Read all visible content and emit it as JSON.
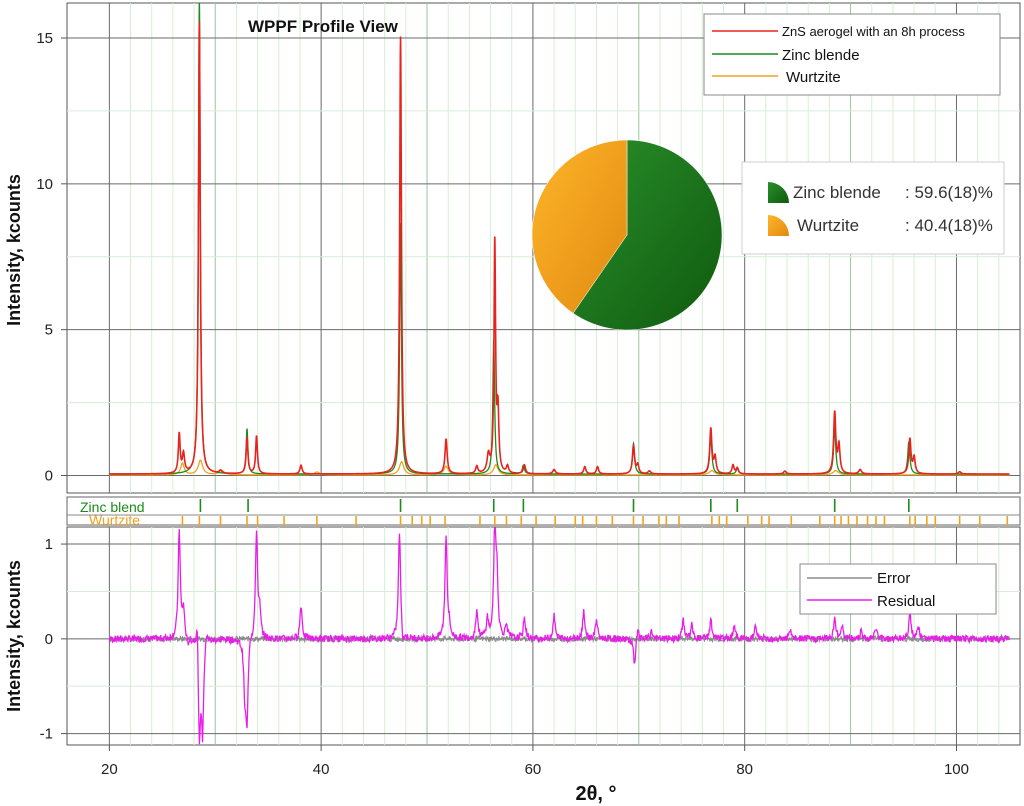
{
  "title": "WPPF Profile View",
  "colors": {
    "observed": "#e8231d",
    "zinc_blende": "#1c8a1c",
    "wurtzite": "#f0a21c",
    "error": "#8a8a8a",
    "residual": "#e81ee8",
    "pie_zinc": "#1a7a1a",
    "pie_wurtzite": "#f2a618"
  },
  "chart_data": [
    {
      "id": "main-profile",
      "type": "line",
      "title": "WPPF Profile View",
      "xlabel": "",
      "ylabel": "Intensity, kcounts",
      "xlim": [
        16,
        106
      ],
      "ylim": [
        -0.6,
        16.2
      ],
      "yticks": [
        0,
        5,
        10,
        15
      ],
      "grid": true,
      "legend_position": "top-right",
      "x_range": [
        20,
        105
      ],
      "baseline": 0.05,
      "series": [
        {
          "name": "ZnS aerogel with an 8h process",
          "color": "#e8231d",
          "peaks": [
            {
              "x": 26.6,
              "h": 1.35,
              "w": 0.1
            },
            {
              "x": 27.0,
              "h": 0.65,
              "w": 0.12
            },
            {
              "x": 28.5,
              "h": 15.5,
              "w": 0.1
            },
            {
              "x": 30.5,
              "h": 0.1,
              "w": 0.15
            },
            {
              "x": 33.0,
              "h": 1.25,
              "w": 0.1
            },
            {
              "x": 33.9,
              "h": 1.3,
              "w": 0.1
            },
            {
              "x": 38.1,
              "h": 0.3,
              "w": 0.12
            },
            {
              "x": 47.5,
              "h": 15.0,
              "w": 0.1
            },
            {
              "x": 51.8,
              "h": 1.2,
              "w": 0.12
            },
            {
              "x": 54.7,
              "h": 0.25,
              "w": 0.12
            },
            {
              "x": 55.8,
              "h": 0.6,
              "w": 0.15
            },
            {
              "x": 56.4,
              "h": 7.9,
              "w": 0.09
            },
            {
              "x": 56.7,
              "h": 2.0,
              "w": 0.1
            },
            {
              "x": 57.6,
              "h": 0.25,
              "w": 0.12
            },
            {
              "x": 59.2,
              "h": 0.3,
              "w": 0.12
            },
            {
              "x": 62.0,
              "h": 0.15,
              "w": 0.15
            },
            {
              "x": 64.9,
              "h": 0.25,
              "w": 0.12
            },
            {
              "x": 66.1,
              "h": 0.25,
              "w": 0.12
            },
            {
              "x": 69.5,
              "h": 0.95,
              "w": 0.12
            },
            {
              "x": 69.9,
              "h": 0.3,
              "w": 0.12
            },
            {
              "x": 71.0,
              "h": 0.1,
              "w": 0.15
            },
            {
              "x": 76.8,
              "h": 1.55,
              "w": 0.12
            },
            {
              "x": 77.2,
              "h": 0.55,
              "w": 0.12
            },
            {
              "x": 78.9,
              "h": 0.3,
              "w": 0.12
            },
            {
              "x": 79.3,
              "h": 0.2,
              "w": 0.12
            },
            {
              "x": 83.8,
              "h": 0.1,
              "w": 0.15
            },
            {
              "x": 88.5,
              "h": 2.1,
              "w": 0.12
            },
            {
              "x": 88.9,
              "h": 0.95,
              "w": 0.12
            },
            {
              "x": 90.9,
              "h": 0.15,
              "w": 0.15
            },
            {
              "x": 95.6,
              "h": 1.2,
              "w": 0.12
            },
            {
              "x": 96.0,
              "h": 0.55,
              "w": 0.12
            },
            {
              "x": 100.3,
              "h": 0.08,
              "w": 0.15
            }
          ]
        },
        {
          "name": "Zinc blende",
          "color": "#1c8a1c",
          "peaks": [
            {
              "x": 28.5,
              "h": 16.4,
              "w": 0.1
            },
            {
              "x": 33.0,
              "h": 1.55,
              "w": 0.1
            },
            {
              "x": 47.5,
              "h": 8.6,
              "w": 0.1
            },
            {
              "x": 56.3,
              "h": 4.6,
              "w": 0.1
            },
            {
              "x": 59.1,
              "h": 0.3,
              "w": 0.12
            },
            {
              "x": 69.5,
              "h": 1.05,
              "w": 0.12
            },
            {
              "x": 76.8,
              "h": 1.3,
              "w": 0.12
            },
            {
              "x": 79.3,
              "h": 0.2,
              "w": 0.12
            },
            {
              "x": 88.5,
              "h": 1.6,
              "w": 0.12
            },
            {
              "x": 95.5,
              "h": 1.1,
              "w": 0.12
            }
          ]
        },
        {
          "name": "Wurtzite",
          "color": "#f0a21c",
          "peaks": [
            {
              "x": 26.9,
              "h": 0.4,
              "w": 0.2
            },
            {
              "x": 28.6,
              "h": 0.5,
              "w": 0.25
            },
            {
              "x": 30.6,
              "h": 0.15,
              "w": 0.3
            },
            {
              "x": 39.6,
              "h": 0.1,
              "w": 0.3
            },
            {
              "x": 47.6,
              "h": 0.45,
              "w": 0.25
            },
            {
              "x": 51.8,
              "h": 0.3,
              "w": 0.25
            },
            {
              "x": 56.5,
              "h": 0.35,
              "w": 0.25
            },
            {
              "x": 76.9,
              "h": 0.15,
              "w": 0.3
            },
            {
              "x": 88.6,
              "h": 0.15,
              "w": 0.3
            }
          ]
        }
      ]
    },
    {
      "id": "reflection-ticks",
      "type": "scatter",
      "series": [
        {
          "name": "Zinc blend",
          "color": "#1c8a1c",
          "positions": [
            28.6,
            33.1,
            47.5,
            56.3,
            59.1,
            69.5,
            76.8,
            79.3,
            88.5,
            95.5
          ]
        },
        {
          "name": "Wurtzite",
          "color": "#f0a21c",
          "positions": [
            26.9,
            28.5,
            30.5,
            33.0,
            34.0,
            36.5,
            39.6,
            43.3,
            47.5,
            48.6,
            49.5,
            50.3,
            51.7,
            55.0,
            56.4,
            57.5,
            58.9,
            60.3,
            62.1,
            64.0,
            64.7,
            66.0,
            67.5,
            69.5,
            70.4,
            71.9,
            72.6,
            73.8,
            76.9,
            77.6,
            78.3,
            80.3,
            81.6,
            82.3,
            84.4,
            87.1,
            88.5,
            89.1,
            89.8,
            90.6,
            91.6,
            92.4,
            93.2,
            95.6,
            96.1,
            97.2,
            98.0,
            100.3,
            102.2,
            104.8
          ]
        }
      ]
    },
    {
      "id": "residual-profile",
      "type": "line",
      "xlabel": "2θ, °",
      "ylabel": "Intensity, kcounts",
      "xlim": [
        16,
        106
      ],
      "ylim": [
        -1.12,
        1.18
      ],
      "yticks": [
        -1,
        0,
        1
      ],
      "xticks": [
        20,
        40,
        60,
        80,
        100
      ],
      "grid": true,
      "legend_position": "top-right",
      "series": [
        {
          "name": "Error",
          "color": "#8a8a8a",
          "amplitude": 0.03
        },
        {
          "name": "Residual",
          "color": "#e81ee8",
          "spikes": [
            {
              "x": 26.6,
              "v": 1.15
            },
            {
              "x": 27.0,
              "v": 0.3
            },
            {
              "x": 27.4,
              "v": -0.08
            },
            {
              "x": 28.3,
              "v": 0.4
            },
            {
              "x": 28.5,
              "v": -1.12
            },
            {
              "x": 28.8,
              "v": -0.95
            },
            {
              "x": 29.2,
              "v": 0.15
            },
            {
              "x": 32.8,
              "v": -0.55
            },
            {
              "x": 33.0,
              "v": -0.85
            },
            {
              "x": 33.3,
              "v": 0.1
            },
            {
              "x": 33.9,
              "v": 1.15
            },
            {
              "x": 34.2,
              "v": 0.25
            },
            {
              "x": 38.1,
              "v": 0.36
            },
            {
              "x": 47.4,
              "v": 1.15
            },
            {
              "x": 47.7,
              "v": -0.12
            },
            {
              "x": 51.8,
              "v": 1.1
            },
            {
              "x": 52.1,
              "v": 0.1
            },
            {
              "x": 54.7,
              "v": 0.3
            },
            {
              "x": 55.7,
              "v": 0.2
            },
            {
              "x": 56.4,
              "v": 1.15
            },
            {
              "x": 56.6,
              "v": 0.6
            },
            {
              "x": 57.5,
              "v": 0.15
            },
            {
              "x": 59.2,
              "v": 0.22
            },
            {
              "x": 62.0,
              "v": 0.24
            },
            {
              "x": 64.8,
              "v": 0.3
            },
            {
              "x": 66.0,
              "v": 0.2
            },
            {
              "x": 69.6,
              "v": -0.3
            },
            {
              "x": 69.9,
              "v": 0.12
            },
            {
              "x": 71.2,
              "v": 0.08
            },
            {
              "x": 74.2,
              "v": 0.2
            },
            {
              "x": 75.0,
              "v": 0.14
            },
            {
              "x": 76.8,
              "v": 0.2
            },
            {
              "x": 79.0,
              "v": 0.15
            },
            {
              "x": 81.0,
              "v": 0.12
            },
            {
              "x": 84.3,
              "v": 0.08
            },
            {
              "x": 88.5,
              "v": 0.22
            },
            {
              "x": 89.2,
              "v": 0.15
            },
            {
              "x": 91.0,
              "v": 0.1
            },
            {
              "x": 92.4,
              "v": 0.12
            },
            {
              "x": 95.6,
              "v": 0.28
            },
            {
              "x": 96.4,
              "v": 0.12
            }
          ]
        }
      ]
    },
    {
      "id": "phase-fractions",
      "type": "pie",
      "labels": [
        "Zinc blende",
        "Wurtzite"
      ],
      "values": [
        59.6,
        40.4
      ],
      "colors": [
        "#1a7a1a",
        "#f2a618"
      ],
      "legend_position": "right"
    }
  ],
  "legend_main": {
    "items": [
      {
        "label": "ZnS aerogel with an 8h process",
        "color": "#e8231d"
      },
      {
        "label": "Zinc blende",
        "color": "#1c8a1c"
      },
      {
        "label": "Wurtzite",
        "color": "#f0a21c"
      }
    ]
  },
  "legend_residual": {
    "items": [
      {
        "label": "Error",
        "color": "#8a8a8a"
      },
      {
        "label": "Residual",
        "color": "#e81ee8"
      }
    ]
  },
  "pie_legend": {
    "items": [
      {
        "label": "Zinc blende",
        "value": ": 59.6(18)%",
        "color": "#1a7a1a"
      },
      {
        "label": "Wurtzite",
        "value": ": 40.4(18)%",
        "color": "#f2a618"
      }
    ]
  },
  "tick_rows": [
    {
      "label": "Zinc blend",
      "color": "#1c8a1c"
    },
    {
      "label": "Wurtzite",
      "color": "#f0a21c"
    }
  ]
}
